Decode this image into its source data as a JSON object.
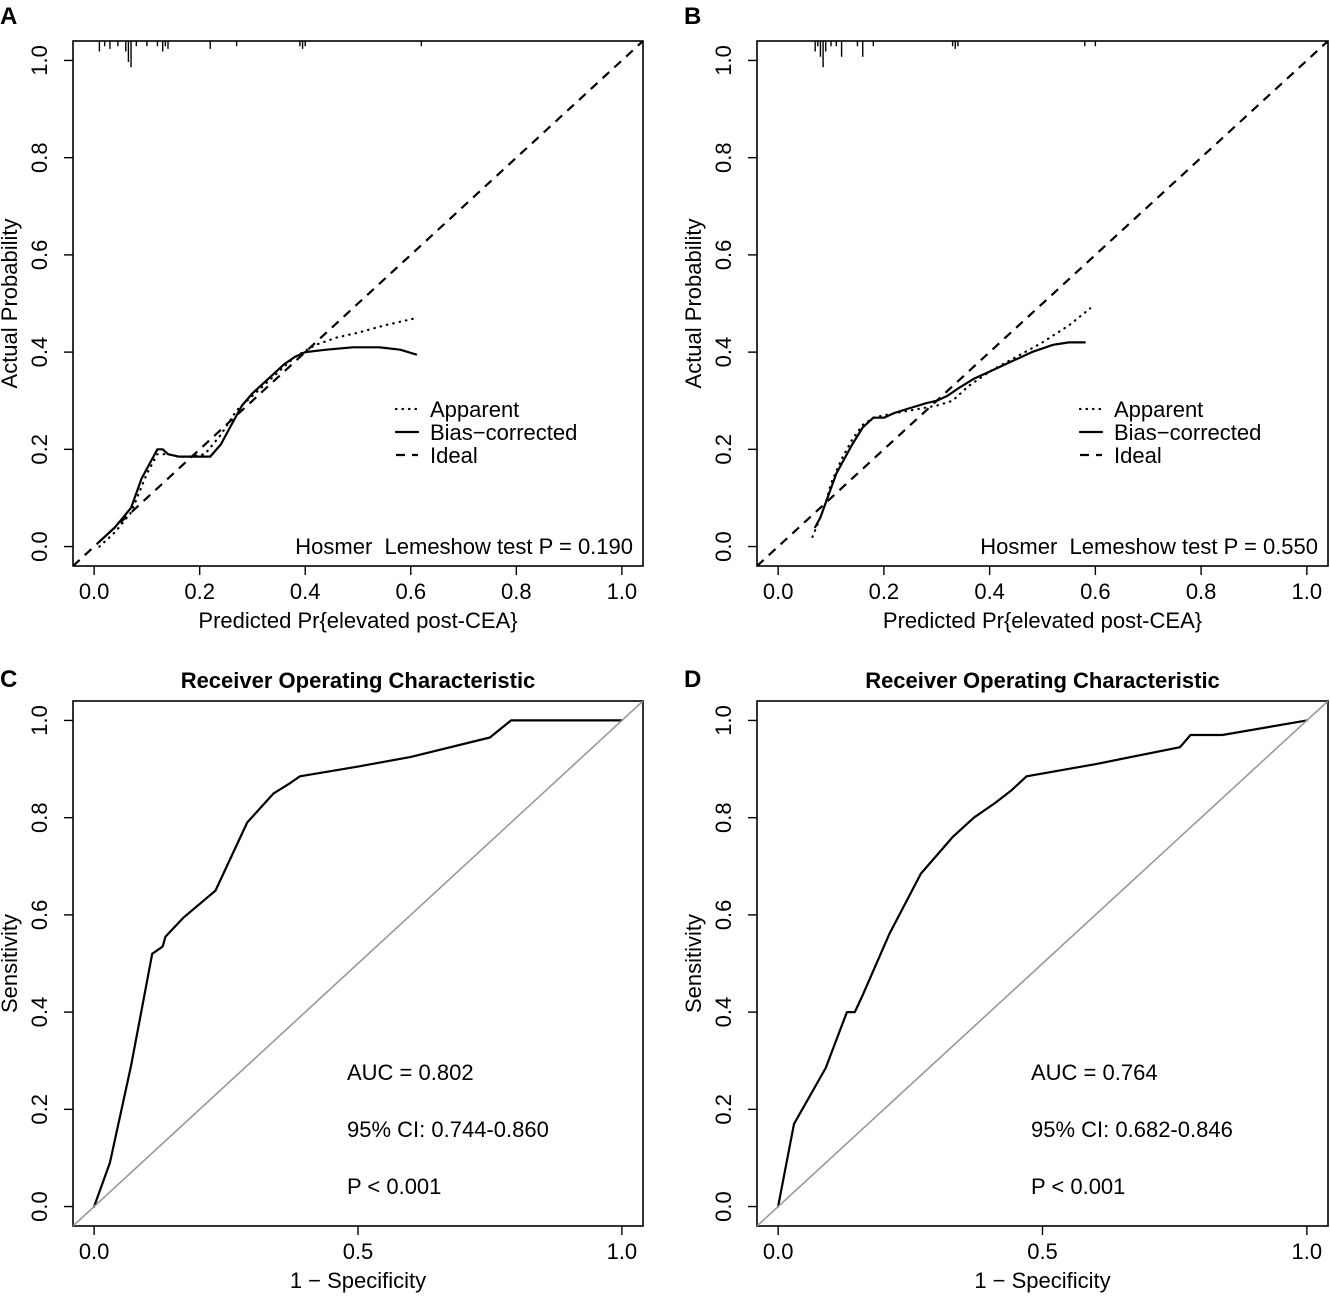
{
  "chart_data": [
    {
      "panel": "A",
      "type": "line",
      "title": "",
      "xlabel": "Predicted Pr{elevated post-CEA}",
      "ylabel": "Actual Probability",
      "xlim": [
        -0.04,
        1.04
      ],
      "ylim": [
        -0.04,
        1.04
      ],
      "xticks": [
        0.0,
        0.2,
        0.4,
        0.6,
        0.8,
        1.0
      ],
      "yticks": [
        0.0,
        0.2,
        0.4,
        0.6,
        0.8,
        1.0
      ],
      "xtick_labels": [
        "0.0",
        "0.2",
        "0.4",
        "0.6",
        "0.8",
        "1.0"
      ],
      "ytick_labels": [
        "0.0",
        "0.2",
        "0.4",
        "0.6",
        "0.8",
        "1.0"
      ],
      "legend": [
        "Apparent",
        "Bias−corrected",
        "Ideal"
      ],
      "annotation": "Hosmer ­ Lemeshow test P = 0.190",
      "series": [
        {
          "name": "Apparent",
          "style": "dotted",
          "x": [
            0.01,
            0.04,
            0.07,
            0.1,
            0.12,
            0.14,
            0.16,
            0.18,
            0.21,
            0.24,
            0.27,
            0.3,
            0.34,
            0.38,
            0.42,
            0.46,
            0.5,
            0.55,
            0.61
          ],
          "y": [
            0.0,
            0.03,
            0.07,
            0.15,
            0.19,
            0.19,
            0.185,
            0.185,
            0.19,
            0.23,
            0.28,
            0.31,
            0.35,
            0.39,
            0.415,
            0.43,
            0.44,
            0.455,
            0.47
          ]
        },
        {
          "name": "Bias−corrected",
          "style": "solid",
          "x": [
            0.01,
            0.04,
            0.07,
            0.09,
            0.12,
            0.13,
            0.14,
            0.16,
            0.18,
            0.2,
            0.22,
            0.24,
            0.26,
            0.28,
            0.3,
            0.33,
            0.36,
            0.38,
            0.4,
            0.44,
            0.49,
            0.54,
            0.58,
            0.61
          ],
          "y": [
            0.01,
            0.04,
            0.08,
            0.14,
            0.2,
            0.2,
            0.19,
            0.185,
            0.185,
            0.185,
            0.185,
            0.21,
            0.25,
            0.29,
            0.315,
            0.345,
            0.375,
            0.39,
            0.4,
            0.405,
            0.41,
            0.41,
            0.405,
            0.395
          ]
        },
        {
          "name": "Ideal",
          "style": "dashed",
          "x": [
            -0.04,
            1.04
          ],
          "y": [
            -0.04,
            1.04
          ]
        }
      ],
      "rug": {
        "x": [
          0.01,
          0.02,
          0.03,
          0.045,
          0.06,
          0.065,
          0.07,
          0.08,
          0.1,
          0.12,
          0.13,
          0.135,
          0.14,
          0.22,
          0.27,
          0.39,
          0.395,
          0.4,
          0.62
        ],
        "h": [
          0.02,
          0.01,
          0.015,
          0.01,
          0.02,
          0.04,
          0.05,
          0.01,
          0.01,
          0.01,
          0.02,
          0.01,
          0.015,
          0.015,
          0.01,
          0.01,
          0.015,
          0.01,
          0.01
        ]
      }
    },
    {
      "panel": "B",
      "type": "line",
      "title": "",
      "xlabel": "Predicted Pr{elevated post-CEA}",
      "ylabel": "Actual Probability",
      "xlim": [
        -0.04,
        1.04
      ],
      "ylim": [
        -0.04,
        1.04
      ],
      "xticks": [
        0.0,
        0.2,
        0.4,
        0.6,
        0.8,
        1.0
      ],
      "yticks": [
        0.0,
        0.2,
        0.4,
        0.6,
        0.8,
        1.0
      ],
      "xtick_labels": [
        "0.0",
        "0.2",
        "0.4",
        "0.6",
        "0.8",
        "1.0"
      ],
      "ytick_labels": [
        "0.0",
        "0.2",
        "0.4",
        "0.6",
        "0.8",
        "1.0"
      ],
      "legend": [
        "Apparent",
        "Bias−corrected",
        "Ideal"
      ],
      "annotation": "Hosmer ­ Lemeshow test P = 0.550",
      "series": [
        {
          "name": "Apparent",
          "style": "dotted",
          "x": [
            0.065,
            0.08,
            0.09,
            0.1,
            0.12,
            0.14,
            0.16,
            0.18,
            0.2,
            0.25,
            0.3,
            0.33,
            0.36,
            0.4,
            0.45,
            0.5,
            0.55,
            0.59
          ],
          "y": [
            0.02,
            0.06,
            0.09,
            0.13,
            0.18,
            0.22,
            0.25,
            0.265,
            0.27,
            0.28,
            0.29,
            0.3,
            0.33,
            0.36,
            0.39,
            0.42,
            0.455,
            0.49
          ]
        },
        {
          "name": "Bias−corrected",
          "style": "solid",
          "x": [
            0.07,
            0.08,
            0.09,
            0.1,
            0.11,
            0.12,
            0.14,
            0.16,
            0.18,
            0.2,
            0.22,
            0.25,
            0.28,
            0.3,
            0.32,
            0.34,
            0.37,
            0.4,
            0.44,
            0.48,
            0.52,
            0.55,
            0.58
          ],
          "y": [
            0.04,
            0.06,
            0.09,
            0.12,
            0.15,
            0.17,
            0.21,
            0.245,
            0.265,
            0.265,
            0.275,
            0.285,
            0.295,
            0.3,
            0.31,
            0.325,
            0.345,
            0.36,
            0.38,
            0.4,
            0.415,
            0.42,
            0.42
          ]
        },
        {
          "name": "Ideal",
          "style": "dashed",
          "x": [
            -0.04,
            1.04
          ],
          "y": [
            -0.04,
            1.04
          ]
        }
      ],
      "rug": {
        "x": [
          0.07,
          0.075,
          0.08,
          0.085,
          0.09,
          0.1,
          0.11,
          0.12,
          0.15,
          0.16,
          0.18,
          0.33,
          0.335,
          0.34,
          0.58,
          0.6
        ],
        "h": [
          0.02,
          0.01,
          0.03,
          0.05,
          0.02,
          0.01,
          0.01,
          0.03,
          0.01,
          0.03,
          0.01,
          0.01,
          0.015,
          0.01,
          0.01,
          0.01
        ]
      }
    },
    {
      "panel": "C",
      "type": "line",
      "title": "Receiver Operating Characteristic",
      "xlabel": "1 − Specificity",
      "ylabel": "Sensitivity",
      "xlim": [
        -0.04,
        1.04
      ],
      "ylim": [
        -0.04,
        1.04
      ],
      "xticks": [
        0.0,
        0.5,
        1.0
      ],
      "yticks": [
        0.0,
        0.2,
        0.4,
        0.6,
        0.8,
        1.0
      ],
      "xtick_labels": [
        "0.0",
        "0.5",
        "1.0"
      ],
      "ytick_labels": [
        "0.0",
        "0.2",
        "0.4",
        "0.6",
        "0.8",
        "1.0"
      ],
      "annotations": [
        "AUC = 0.802",
        "95% CI: 0.744-0.860",
        "P < 0.001"
      ],
      "series": [
        {
          "name": "ROC",
          "style": "solid",
          "color": "#000000",
          "x": [
            0.0,
            0.03,
            0.07,
            0.11,
            0.13,
            0.135,
            0.17,
            0.23,
            0.26,
            0.29,
            0.34,
            0.37,
            0.39,
            0.5,
            0.6,
            0.75,
            0.79,
            1.0
          ],
          "y": [
            0.0,
            0.09,
            0.29,
            0.52,
            0.535,
            0.555,
            0.595,
            0.65,
            0.72,
            0.79,
            0.85,
            0.87,
            0.885,
            0.905,
            0.925,
            0.965,
            1.0,
            1.0
          ]
        },
        {
          "name": "Reference",
          "style": "solid",
          "color": "#999999",
          "x": [
            -0.04,
            1.04
          ],
          "y": [
            -0.04,
            1.04
          ]
        }
      ]
    },
    {
      "panel": "D",
      "type": "line",
      "title": "Receiver Operating Characteristic",
      "xlabel": "1 − Specificity",
      "ylabel": "Sensitivity",
      "xlim": [
        -0.04,
        1.04
      ],
      "ylim": [
        -0.04,
        1.04
      ],
      "xticks": [
        0.0,
        0.5,
        1.0
      ],
      "yticks": [
        0.0,
        0.2,
        0.4,
        0.6,
        0.8,
        1.0
      ],
      "xtick_labels": [
        "0.0",
        "0.5",
        "1.0"
      ],
      "ytick_labels": [
        "0.0",
        "0.2",
        "0.4",
        "0.6",
        "0.8",
        "1.0"
      ],
      "annotations": [
        "AUC = 0.764",
        "95% CI: 0.682-0.846",
        "P < 0.001"
      ],
      "series": [
        {
          "name": "ROC",
          "style": "solid",
          "color": "#000000",
          "x": [
            0.0,
            0.03,
            0.09,
            0.13,
            0.145,
            0.16,
            0.21,
            0.27,
            0.33,
            0.37,
            0.41,
            0.44,
            0.47,
            0.6,
            0.76,
            0.78,
            0.84,
            1.0
          ],
          "y": [
            0.0,
            0.17,
            0.285,
            0.4,
            0.4,
            0.435,
            0.56,
            0.685,
            0.76,
            0.8,
            0.83,
            0.855,
            0.885,
            0.91,
            0.945,
            0.97,
            0.97,
            1.0
          ]
        },
        {
          "name": "Reference",
          "style": "solid",
          "color": "#999999",
          "x": [
            -0.04,
            1.04
          ],
          "y": [
            -0.04,
            1.04
          ]
        }
      ]
    }
  ]
}
